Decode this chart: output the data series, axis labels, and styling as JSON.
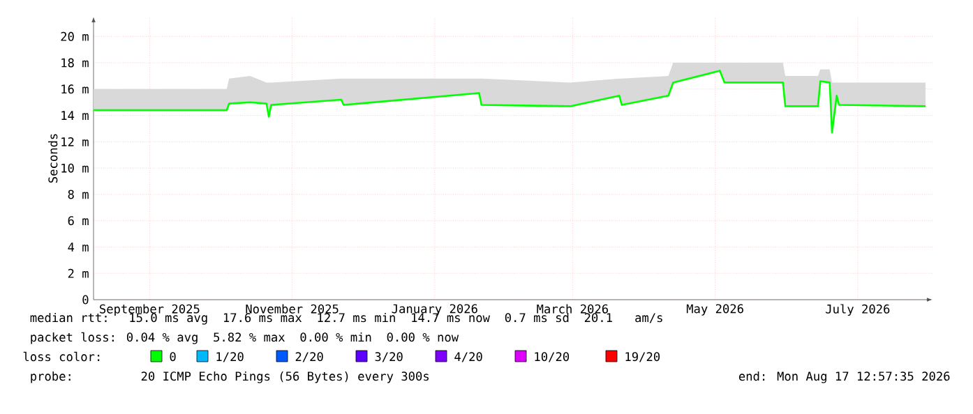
{
  "chart_data": {
    "type": "line",
    "ylabel": "Seconds",
    "x": [
      "2025-08-23",
      "2025-10-17",
      "2025-10-19",
      "2025-10-20",
      "2025-10-29",
      "2025-11-05",
      "2025-11-06",
      "2025-11-07",
      "2025-12-07",
      "2025-12-08",
      "2026-02-04",
      "2026-02-05",
      "2026-03-15",
      "2026-04-05",
      "2026-04-06",
      "2026-04-26",
      "2026-04-28",
      "2026-05-18",
      "2026-05-20",
      "2026-06-14",
      "2026-06-15",
      "2026-06-29",
      "2026-06-30",
      "2026-07-04",
      "2026-07-05",
      "2026-07-07",
      "2026-07-08",
      "2026-08-14"
    ],
    "series": [
      {
        "name": "0",
        "color": "#00ff00",
        "values": [
          14.4,
          14.4,
          14.4,
          14.9,
          15.0,
          14.9,
          13.9,
          14.8,
          15.2,
          14.8,
          15.7,
          14.8,
          14.7,
          15.5,
          14.8,
          15.5,
          16.5,
          17.4,
          16.5,
          16.5,
          14.7,
          14.7,
          16.6,
          16.5,
          12.7,
          15.5,
          14.8,
          14.7
        ],
        "lower": [
          14.4,
          14.4,
          14.4,
          14.9,
          15.0,
          14.9,
          13.9,
          14.8,
          15.2,
          14.8,
          15.7,
          14.8,
          14.7,
          15.5,
          14.8,
          15.5,
          16.5,
          17.4,
          16.5,
          16.5,
          14.7,
          14.7,
          16.6,
          16.5,
          12.7,
          15.5,
          14.8,
          14.7
        ],
        "upper": [
          16.0,
          16.0,
          16.0,
          16.8,
          17.0,
          16.5,
          16.5,
          16.5,
          16.8,
          16.8,
          16.8,
          16.8,
          16.5,
          16.8,
          16.8,
          17.0,
          18.0,
          18.0,
          18.0,
          18.0,
          17.0,
          17.0,
          17.5,
          17.5,
          16.5,
          16.5,
          16.5,
          16.5
        ]
      },
      {
        "name": "1/20",
        "color": "#00b8ff",
        "values": [
          null,
          null,
          null,
          null,
          null,
          null,
          null,
          null,
          null,
          null,
          null,
          null,
          null,
          null,
          null,
          null,
          null,
          null,
          null,
          null,
          null,
          null,
          null,
          null,
          null,
          null,
          null,
          null
        ]
      },
      {
        "name": "2/20",
        "color": "#0059ff",
        "values": [
          null,
          null,
          null,
          null,
          null,
          null,
          null,
          null,
          null,
          null,
          null,
          null,
          null,
          null,
          null,
          null,
          null,
          null,
          null,
          null,
          null,
          null,
          null,
          null,
          null,
          null,
          null,
          null
        ]
      },
      {
        "name": "3/20",
        "color": "#5e00ff",
        "values": [
          null,
          null,
          null,
          null,
          null,
          null,
          null,
          null,
          null,
          null,
          null,
          null,
          null,
          null,
          null,
          null,
          null,
          null,
          null,
          null,
          null,
          null,
          null,
          null,
          null,
          null,
          null,
          null
        ]
      },
      {
        "name": "4/20",
        "color": "#7e00ff",
        "values": [
          null,
          null,
          null,
          null,
          null,
          null,
          null,
          null,
          null,
          null,
          null,
          null,
          null,
          null,
          null,
          null,
          null,
          null,
          null,
          null,
          null,
          null,
          null,
          null,
          null,
          null,
          null,
          null
        ]
      },
      {
        "name": "10/20",
        "color": "#dd00ff",
        "values": [
          null,
          null,
          null,
          null,
          null,
          null,
          null,
          null,
          null,
          null,
          null,
          null,
          null,
          null,
          null,
          null,
          null,
          null,
          null,
          null,
          null,
          null,
          null,
          null,
          null,
          null,
          null,
          null
        ]
      },
      {
        "name": "19/20",
        "color": "#ff0000",
        "values": [
          null,
          null,
          null,
          null,
          null,
          null,
          null,
          null,
          null,
          null,
          null,
          null,
          null,
          null,
          null,
          null,
          null,
          null,
          null,
          null,
          null,
          null,
          null,
          null,
          null,
          null,
          null,
          null
        ]
      }
    ],
    "xlim": [
      "2025-08-23",
      "2026-08-17"
    ],
    "xticks": [
      {
        "value": "2025-09-16",
        "label": "September 2025"
      },
      {
        "value": "2025-11-16",
        "label": "November 2025"
      },
      {
        "value": "2026-01-16",
        "label": "January 2026"
      },
      {
        "value": "2026-03-16",
        "label": "March 2026"
      },
      {
        "value": "2026-05-16",
        "label": "May 2026"
      },
      {
        "value": "2026-07-16",
        "label": "July 2026"
      }
    ],
    "ylim": [
      0,
      21.5
    ],
    "yticks": [
      0,
      {
        "value": 2,
        "label": "2 m"
      },
      {
        "value": 4,
        "label": "4 m"
      },
      {
        "value": 6,
        "label": "6 m"
      },
      {
        "value": 8,
        "label": "8 m"
      },
      {
        "value": 10,
        "label": "10 m"
      },
      {
        "value": 12,
        "label": "12 m"
      },
      {
        "value": 14,
        "label": "14 m"
      },
      {
        "value": 16,
        "label": "16 m"
      },
      {
        "value": 18,
        "label": "18 m"
      },
      {
        "value": 20,
        "label": "20 m"
      }
    ],
    "grid": true,
    "legend": "bottom",
    "legend_title": "loss color:",
    "annotations": [
      "median rtt:  15.0 ms avg  17.6 ms max  12.7 ms min  14.7 ms now  0.7 ms sd  20.1   am/s",
      "packet loss: 0.04 % avg  5.82 % max  0.00 % min  0.00 % now",
      "probe:       20 ICMP Echo Pings (56 Bytes) every 300s",
      "end: Mon Aug 17 12:57:35 2026"
    ]
  }
}
